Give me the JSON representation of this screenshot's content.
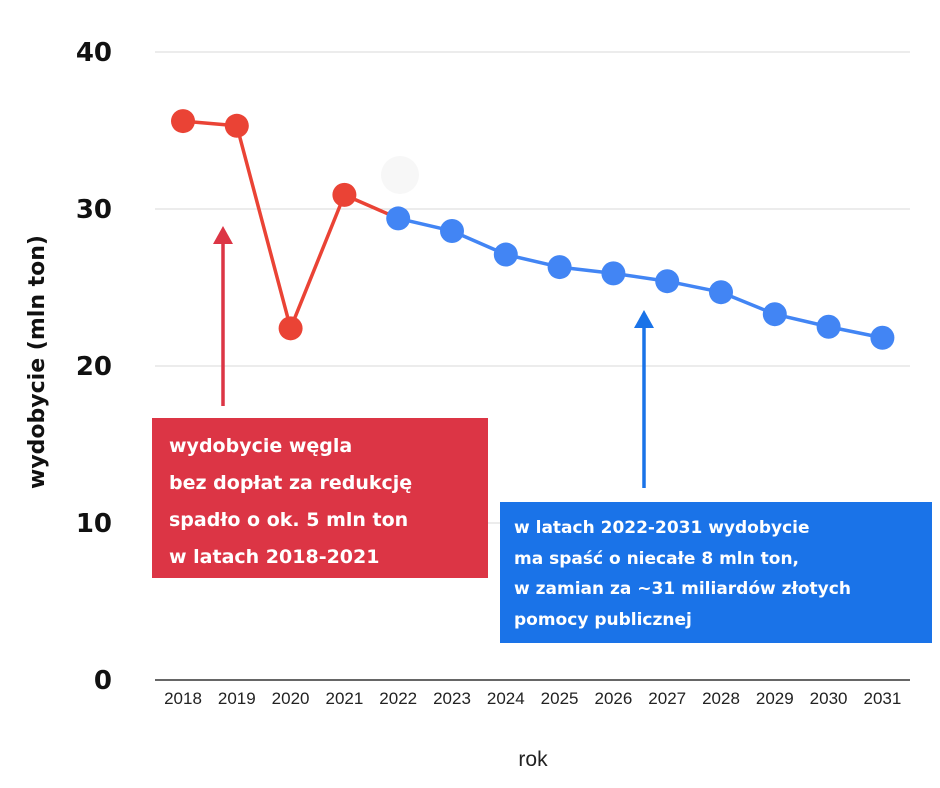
{
  "chart_data": {
    "type": "line",
    "xlabel": "rok",
    "ylabel": "wydobycie (mln ton)",
    "ylim": [
      0,
      40
    ],
    "yticks": [
      0,
      10,
      20,
      30,
      40
    ],
    "grid": true,
    "categories": [
      "2018",
      "2019",
      "2020",
      "2021",
      "2022",
      "2023",
      "2024",
      "2025",
      "2026",
      "2027",
      "2028",
      "2029",
      "2030",
      "2031"
    ],
    "series": [
      {
        "color": "#ea4335",
        "x": [
          "2018",
          "2019",
          "2020",
          "2021",
          "2022"
        ],
        "values": [
          35.6,
          35.3,
          22.4,
          30.9,
          29.4
        ]
      },
      {
        "color": "#4285f4",
        "x": [
          "2022",
          "2023",
          "2024",
          "2025",
          "2026",
          "2027",
          "2028",
          "2029",
          "2030",
          "2031"
        ],
        "values": [
          29.4,
          28.6,
          27.1,
          26.3,
          25.9,
          25.4,
          24.7,
          23.3,
          22.5,
          21.8
        ]
      }
    ],
    "annotations": [
      {
        "color": "#dc3545",
        "lines": [
          "wydobycie węgla",
          "bez dopłat za redukcję",
          "spadło o ok. 5 mln ton",
          "w latach 2018-2021"
        ]
      },
      {
        "color": "#1a73e8",
        "lines": [
          "w latach 2022-2031 wydobycie",
          "ma spaść o niecałe 8 mln ton,",
          "w zamian za ~31 miliardów złotych",
          "pomocy publicznej"
        ]
      }
    ]
  }
}
